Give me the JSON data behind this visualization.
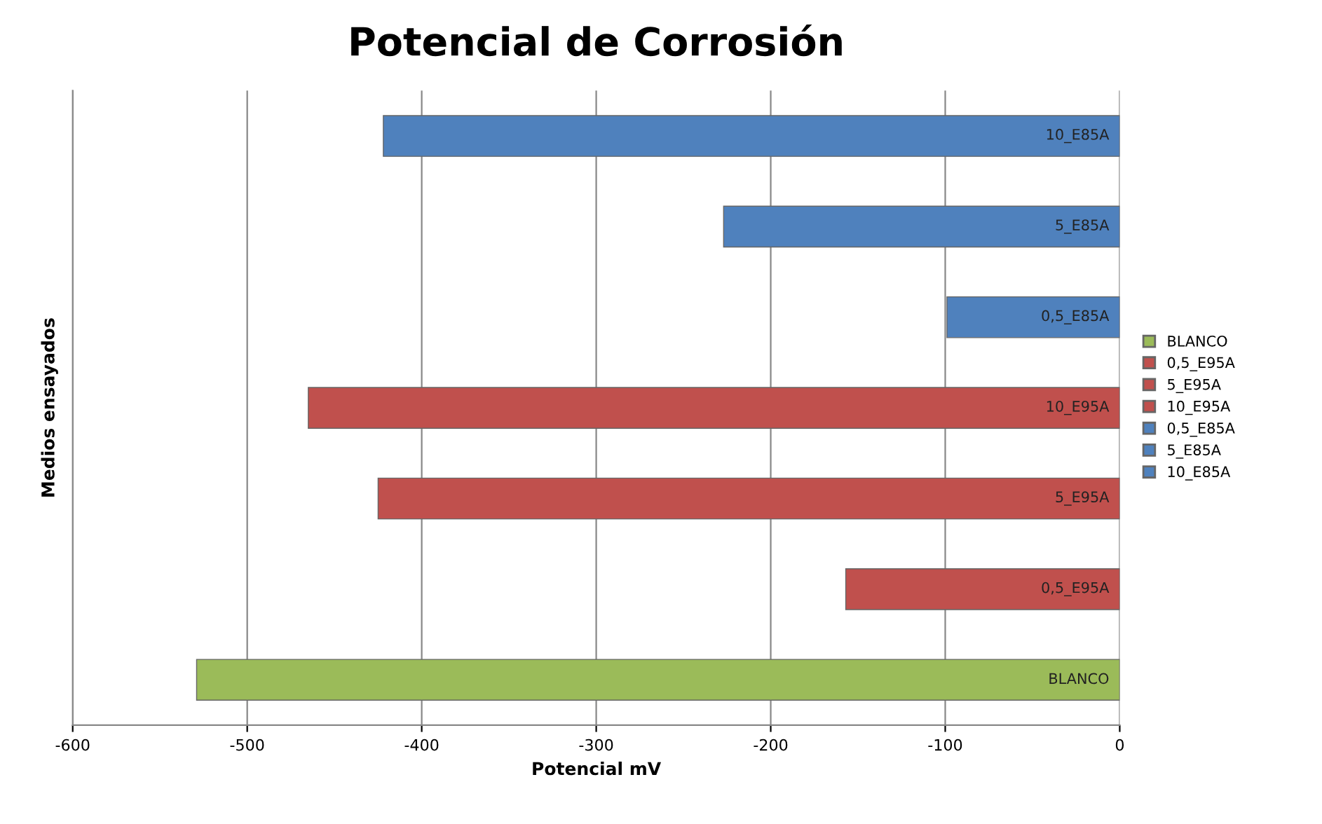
{
  "chart_data": {
    "type": "bar",
    "orientation": "horizontal",
    "title": "Potencial de Corrosión",
    "xlabel": "Potencial mV",
    "ylabel": "Medios ensayados",
    "categories": [
      null,
      null,
      null,
      null,
      null,
      null,
      null
    ],
    "series": [
      {
        "name": "BLANCO",
        "color": "#9bbb59",
        "values": [
          null,
          null,
          null,
          null,
          null,
          null,
          -529
        ]
      },
      {
        "name": "0,5_E95A",
        "color": "#c0504d",
        "values": [
          null,
          null,
          null,
          null,
          null,
          -157,
          null
        ]
      },
      {
        "name": "5_E95A",
        "color": "#c0504d",
        "values": [
          null,
          null,
          null,
          null,
          -425,
          null,
          null
        ]
      },
      {
        "name": "10_E95A",
        "color": "#c0504d",
        "values": [
          null,
          null,
          null,
          -465,
          null,
          null,
          null
        ]
      },
      {
        "name": "0,5_E85A",
        "color": "#4f81bd",
        "values": [
          null,
          null,
          -99,
          null,
          null,
          null,
          null
        ]
      },
      {
        "name": "5_E85A",
        "color": "#4f81bd",
        "values": [
          null,
          -227,
          null,
          null,
          null,
          null,
          null
        ]
      },
      {
        "name": "10_E85A",
        "color": "#4f81bd",
        "values": [
          -422,
          null,
          null,
          null,
          null,
          null,
          null
        ]
      }
    ],
    "annotations": [
      "BLANCO",
      "0,5_E95A",
      "5_E95A",
      "10_E95A",
      "0,5_E85A",
      "5_E85A",
      "10_E85A"
    ],
    "xlim": [
      -600,
      0
    ],
    "xticks": [
      -600,
      -500,
      -400,
      -300,
      -200,
      -100,
      0
    ],
    "grid": "x",
    "legend": "right"
  }
}
